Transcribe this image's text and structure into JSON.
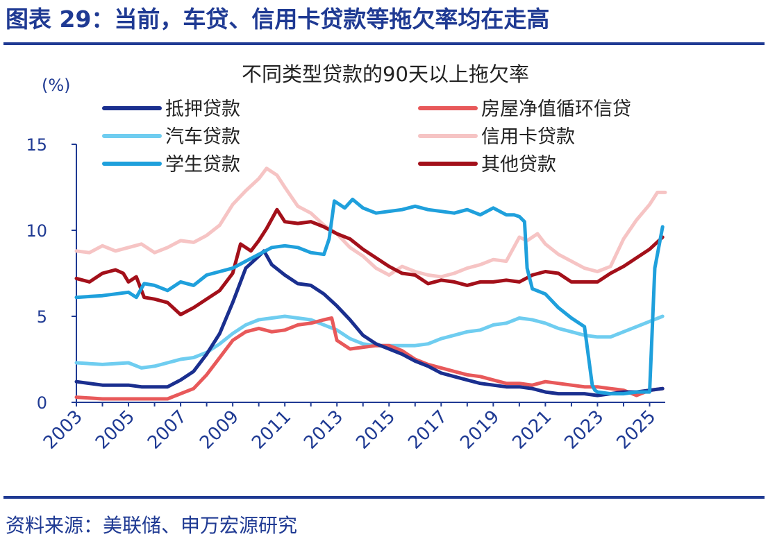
{
  "header": {
    "figure_title": "图表 29：当前，车贷、信用卡贷款等拖欠率均在走高"
  },
  "footer": {
    "source": "资料来源：美联储、申万宏源研究"
  },
  "colors": {
    "brand": "#1f3a93",
    "axis": "#1f3a93"
  },
  "chart_data": {
    "type": "line",
    "title": "不同类型贷款的90天以上拖欠率",
    "ylabel": "(%)",
    "xlabel": "",
    "ylim": [
      0,
      15
    ],
    "xlim": [
      2003,
      2025.6
    ],
    "yticks": [
      0,
      5,
      10,
      15
    ],
    "xticks": [
      "2003",
      "2005",
      "2007",
      "2009",
      "2011",
      "2013",
      "2015",
      "2017",
      "2019",
      "2021",
      "2023",
      "2025"
    ],
    "legend_position": "top",
    "series": [
      {
        "name": "抵押贷款",
        "color": "#1a2f8f",
        "x": [
          2003.0,
          2004.0,
          2005.0,
          2005.5,
          2006.0,
          2006.5,
          2007.0,
          2007.5,
          2008.0,
          2008.5,
          2009.0,
          2009.5,
          2010.0,
          2010.2,
          2010.5,
          2011.0,
          2011.5,
          2012.0,
          2012.5,
          2013.0,
          2013.5,
          2014.0,
          2014.5,
          2015.0,
          2015.5,
          2016.0,
          2016.5,
          2017.0,
          2017.5,
          2018.0,
          2018.5,
          2019.0,
          2019.5,
          2020.0,
          2020.5,
          2021.0,
          2021.5,
          2022.0,
          2022.5,
          2023.0,
          2023.5,
          2024.0,
          2024.5,
          2025.0,
          2025.5
        ],
        "y": [
          1.2,
          1.0,
          1.0,
          0.9,
          0.9,
          0.9,
          1.3,
          1.8,
          2.8,
          4.0,
          5.8,
          7.8,
          8.5,
          8.8,
          8.0,
          7.4,
          6.9,
          6.8,
          6.3,
          5.6,
          4.8,
          3.9,
          3.4,
          3.1,
          2.8,
          2.4,
          2.1,
          1.7,
          1.5,
          1.3,
          1.1,
          1.0,
          0.9,
          0.9,
          0.8,
          0.6,
          0.5,
          0.5,
          0.5,
          0.4,
          0.5,
          0.6,
          0.6,
          0.7,
          0.8
        ]
      },
      {
        "name": "房屋净值循环信贷",
        "color": "#e8595a",
        "x": [
          2003.0,
          2004.0,
          2005.0,
          2005.5,
          2006.0,
          2006.5,
          2007.0,
          2007.5,
          2008.0,
          2008.5,
          2009.0,
          2009.5,
          2010.0,
          2010.5,
          2011.0,
          2011.5,
          2012.0,
          2012.5,
          2012.8,
          2013.0,
          2013.5,
          2014.0,
          2014.5,
          2015.0,
          2015.5,
          2016.0,
          2016.5,
          2017.0,
          2017.5,
          2018.0,
          2018.5,
          2019.0,
          2019.5,
          2020.0,
          2020.5,
          2021.0,
          2021.5,
          2022.0,
          2022.5,
          2023.0,
          2023.5,
          2024.0,
          2024.5,
          2025.0,
          2025.5
        ],
        "y": [
          0.3,
          0.2,
          0.2,
          0.2,
          0.2,
          0.2,
          0.5,
          0.8,
          1.6,
          2.6,
          3.6,
          4.1,
          4.3,
          4.1,
          4.2,
          4.5,
          4.6,
          4.8,
          4.9,
          3.6,
          3.1,
          3.2,
          3.3,
          3.3,
          3.0,
          2.5,
          2.2,
          2.0,
          1.8,
          1.6,
          1.5,
          1.3,
          1.1,
          1.1,
          1.0,
          1.2,
          1.1,
          1.0,
          0.9,
          0.9,
          0.8,
          0.7,
          0.4,
          0.7,
          0.8
        ]
      },
      {
        "name": "汽车贷款",
        "color": "#6fcdf0",
        "x": [
          2003.0,
          2004.0,
          2005.0,
          2005.5,
          2006.0,
          2006.5,
          2007.0,
          2007.5,
          2008.0,
          2008.5,
          2009.0,
          2009.5,
          2010.0,
          2010.5,
          2011.0,
          2011.5,
          2012.0,
          2012.5,
          2013.0,
          2013.5,
          2014.0,
          2014.5,
          2015.0,
          2015.5,
          2016.0,
          2016.5,
          2017.0,
          2017.5,
          2018.0,
          2018.5,
          2019.0,
          2019.5,
          2020.0,
          2020.5,
          2021.0,
          2021.5,
          2022.0,
          2022.5,
          2023.0,
          2023.5,
          2024.0,
          2024.5,
          2025.0,
          2025.5
        ],
        "y": [
          2.3,
          2.2,
          2.3,
          2.0,
          2.1,
          2.3,
          2.5,
          2.6,
          2.9,
          3.4,
          4.0,
          4.5,
          4.8,
          4.9,
          5.0,
          4.9,
          4.8,
          4.5,
          4.2,
          3.7,
          3.4,
          3.3,
          3.3,
          3.3,
          3.3,
          3.4,
          3.7,
          3.9,
          4.1,
          4.2,
          4.5,
          4.6,
          4.9,
          4.8,
          4.6,
          4.3,
          4.1,
          3.9,
          3.8,
          3.8,
          4.1,
          4.4,
          4.7,
          5.0
        ]
      },
      {
        "name": "信用卡贷款",
        "color": "#f6c4c4",
        "x": [
          2003.0,
          2003.5,
          2004.0,
          2004.5,
          2005.0,
          2005.5,
          2006.0,
          2006.5,
          2007.0,
          2007.5,
          2008.0,
          2008.5,
          2009.0,
          2009.5,
          2010.0,
          2010.3,
          2010.7,
          2011.0,
          2011.5,
          2012.0,
          2012.5,
          2013.0,
          2013.5,
          2014.0,
          2014.5,
          2015.0,
          2015.5,
          2016.0,
          2016.5,
          2017.0,
          2017.5,
          2018.0,
          2018.5,
          2019.0,
          2019.5,
          2020.0,
          2020.3,
          2020.7,
          2021.0,
          2021.5,
          2022.0,
          2022.5,
          2023.0,
          2023.5,
          2024.0,
          2024.5,
          2025.0,
          2025.3,
          2025.6
        ],
        "y": [
          8.8,
          8.7,
          9.1,
          8.8,
          9.0,
          9.2,
          8.7,
          9.0,
          9.4,
          9.3,
          9.7,
          10.3,
          11.5,
          12.3,
          13.0,
          13.6,
          13.2,
          12.5,
          11.4,
          11.0,
          10.3,
          9.8,
          9.0,
          8.5,
          7.8,
          7.4,
          7.9,
          7.6,
          7.4,
          7.3,
          7.5,
          7.8,
          8.0,
          8.3,
          8.2,
          9.6,
          9.4,
          9.8,
          9.2,
          8.6,
          8.2,
          7.8,
          7.6,
          7.9,
          9.5,
          10.6,
          11.5,
          12.2,
          12.2
        ]
      },
      {
        "name": "学生贷款",
        "color": "#1fa0dc",
        "x": [
          2003.0,
          2004.0,
          2005.0,
          2005.3,
          2005.6,
          2006.0,
          2006.5,
          2007.0,
          2007.5,
          2008.0,
          2008.5,
          2009.0,
          2009.5,
          2010.0,
          2010.5,
          2011.0,
          2011.5,
          2012.0,
          2012.5,
          2012.7,
          2012.9,
          2013.3,
          2013.6,
          2014.0,
          2014.5,
          2015.0,
          2015.5,
          2016.0,
          2016.5,
          2017.0,
          2017.5,
          2018.0,
          2018.5,
          2019.0,
          2019.5,
          2019.8,
          2020.0,
          2020.2,
          2020.3,
          2020.5,
          2021.0,
          2021.5,
          2022.0,
          2022.5,
          2022.8,
          2022.9,
          2023.0,
          2023.5,
          2024.0,
          2024.5,
          2025.0,
          2025.2,
          2025.5
        ],
        "y": [
          6.1,
          6.2,
          6.4,
          6.1,
          6.9,
          6.8,
          6.5,
          7.0,
          6.8,
          7.4,
          7.6,
          7.8,
          8.2,
          8.6,
          9.0,
          9.1,
          9.0,
          8.7,
          8.6,
          9.5,
          11.7,
          11.3,
          11.8,
          11.3,
          11.0,
          11.1,
          11.2,
          11.4,
          11.2,
          11.1,
          11.0,
          11.2,
          10.9,
          11.3,
          10.9,
          10.9,
          10.8,
          10.5,
          7.8,
          6.6,
          6.3,
          5.5,
          4.9,
          4.4,
          1.0,
          0.7,
          0.6,
          0.5,
          0.5,
          0.6,
          0.6,
          7.8,
          10.2
        ]
      },
      {
        "name": "其他贷款",
        "color": "#a3101a",
        "x": [
          2003.0,
          2003.5,
          2004.0,
          2004.5,
          2004.8,
          2005.0,
          2005.3,
          2005.6,
          2006.0,
          2006.5,
          2007.0,
          2007.5,
          2008.0,
          2008.5,
          2009.0,
          2009.3,
          2009.7,
          2010.0,
          2010.3,
          2010.7,
          2011.0,
          2011.5,
          2012.0,
          2012.5,
          2013.0,
          2013.5,
          2014.0,
          2014.5,
          2015.0,
          2015.5,
          2016.0,
          2016.5,
          2017.0,
          2017.5,
          2018.0,
          2018.5,
          2019.0,
          2019.5,
          2020.0,
          2020.5,
          2021.0,
          2021.5,
          2022.0,
          2022.5,
          2023.0,
          2023.5,
          2024.0,
          2024.5,
          2025.0,
          2025.5
        ],
        "y": [
          7.2,
          7.0,
          7.5,
          7.7,
          7.5,
          7.0,
          7.3,
          6.1,
          6.0,
          5.8,
          5.1,
          5.5,
          6.0,
          6.5,
          7.5,
          9.2,
          8.8,
          9.4,
          10.1,
          11.2,
          10.5,
          10.4,
          10.5,
          10.2,
          9.8,
          9.5,
          8.9,
          8.4,
          7.9,
          7.5,
          7.4,
          6.9,
          7.1,
          7.0,
          6.8,
          7.0,
          7.0,
          7.1,
          7.0,
          7.4,
          7.6,
          7.5,
          7.0,
          7.0,
          7.0,
          7.5,
          7.9,
          8.4,
          8.9,
          9.6
        ]
      }
    ]
  }
}
